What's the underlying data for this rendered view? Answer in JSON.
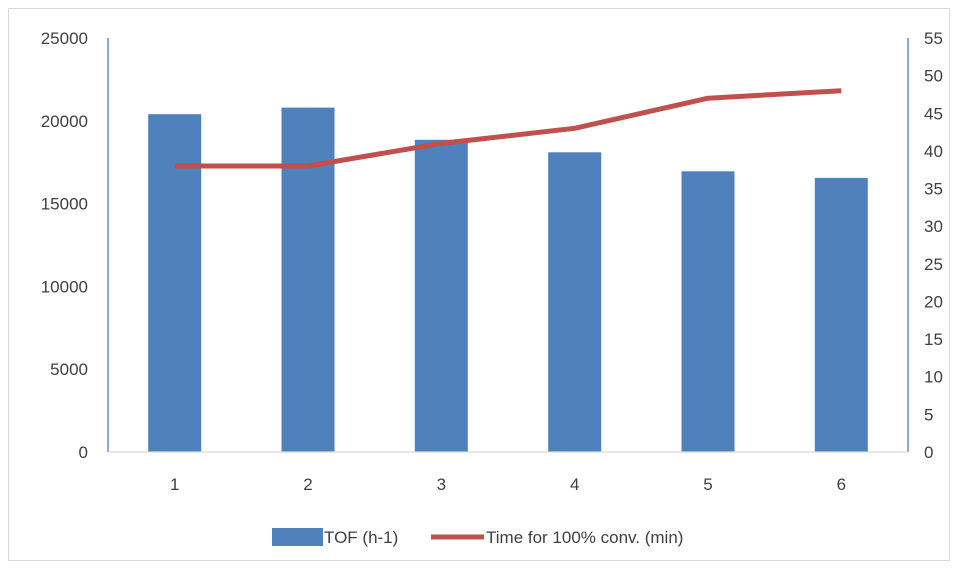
{
  "chart_data": {
    "type": "bar",
    "categories": [
      "1",
      "2",
      "3",
      "4",
      "5",
      "6"
    ],
    "series": [
      {
        "name": "TOF (h-1)",
        "type": "bar",
        "axis": "left",
        "color": "#4F81BD",
        "values": [
          20400,
          20800,
          18850,
          18100,
          16950,
          16550
        ]
      },
      {
        "name": "Time for 100% conv. (min)",
        "type": "line",
        "axis": "right",
        "color": "#C0504D",
        "values": [
          38,
          38,
          41,
          43,
          47,
          48
        ]
      }
    ],
    "title": "",
    "xlabel": "",
    "ylabel": "",
    "ylabel_right": "",
    "ylim": [
      0,
      25000
    ],
    "yticks": [
      0,
      5000,
      10000,
      15000,
      20000,
      25000
    ],
    "ylim_right": [
      0,
      55
    ],
    "yticks_right": [
      0,
      5,
      10,
      15,
      20,
      25,
      30,
      35,
      40,
      45,
      50,
      55
    ],
    "grid": false,
    "legend": "bottom"
  }
}
